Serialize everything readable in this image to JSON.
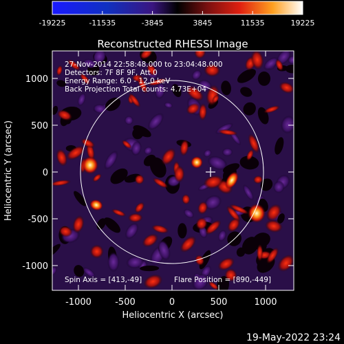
{
  "colorbar": {
    "tick_labels": [
      "-19225",
      "-11535",
      "-3845",
      "3845",
      "11535",
      "19225"
    ]
  },
  "image": {
    "title": "Reconstructed RHESSI Image",
    "xlabel": "Heliocentric X (arcsec)",
    "ylabel": "Heliocentric Y (arcsec)",
    "x_ticks": [
      "-1000",
      "-500",
      "0",
      "500",
      "1000"
    ],
    "y_ticks": [
      "1000",
      "500",
      "0",
      "-500",
      "-1000"
    ],
    "info_lines": [
      "27-Nov-2014 22:58:48.000 to 23:04:48.000",
      "Detectors: 7F 8F 9F, Att 0",
      "Energy Range: 6.0 - 12.0 keV",
      "Back Projection    Total counts: 4.73E+04"
    ],
    "spin_axis": "Spin Axis = [413,-49]",
    "flare_position": "Flare Position = [890,-449]"
  },
  "footer": {
    "timestamp": "19-May-2022 23:24"
  },
  "colors": {
    "colorbar_low": "#0000ff",
    "colorbar_mid": "#000000",
    "colorbar_high": "#ffffff"
  }
}
